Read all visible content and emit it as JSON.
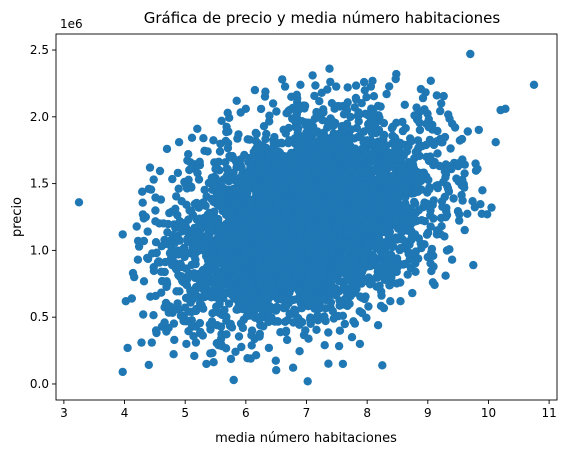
{
  "chart_data": {
    "type": "scatter",
    "title": "Gráfica de precio y media número habitaciones",
    "xlabel": "media número habitaciones",
    "ylabel": "precio",
    "y_offset_label": "1e6",
    "xlim": [
      2.87,
      11.13
    ],
    "ylim": [
      -0.12,
      2.62
    ],
    "x_ticks": [
      3,
      4,
      5,
      6,
      7,
      8,
      9,
      10,
      11
    ],
    "y_ticks": [
      0.0,
      0.5,
      1.0,
      1.5,
      2.0,
      2.5
    ],
    "x_tick_labels": [
      "3",
      "4",
      "5",
      "6",
      "7",
      "8",
      "9",
      "10",
      "11"
    ],
    "y_tick_labels": [
      "0.0",
      "0.5",
      "1.0",
      "1.5",
      "2.0",
      "2.5"
    ],
    "grid": false,
    "marker_color": "#1f77b4",
    "series": [
      {
        "points": [
          [
            3.25,
            1.36
          ],
          [
            3.97,
            0.09
          ],
          [
            3.97,
            1.12
          ],
          [
            4.02,
            0.62
          ],
          [
            4.05,
            0.27
          ],
          [
            4.12,
            0.64
          ],
          [
            4.14,
            0.83
          ],
          [
            4.16,
            0.8
          ],
          [
            4.22,
            0.93
          ],
          [
            4.28,
            0.31
          ],
          [
            4.32,
            1.07
          ],
          [
            4.35,
            1.25
          ],
          [
            4.4,
            1.46
          ],
          [
            4.42,
            1.62
          ],
          [
            4.45,
            0.31
          ],
          [
            4.48,
            1.53
          ],
          [
            4.52,
            0.4
          ],
          [
            4.55,
            0.91
          ],
          [
            4.6,
            1.38
          ],
          [
            4.62,
            0.77
          ],
          [
            4.66,
            0.46
          ],
          [
            4.7,
            1.76
          ],
          [
            4.72,
            1.05
          ],
          [
            4.75,
            0.58
          ],
          [
            4.78,
            1.29
          ],
          [
            4.82,
            0.33
          ],
          [
            4.85,
            0.86
          ],
          [
            4.88,
            1.58
          ],
          [
            4.9,
            1.81
          ],
          [
            4.93,
            0.51
          ],
          [
            4.96,
            1.19
          ],
          [
            5.02,
            0.3
          ],
          [
            5.05,
            1.72
          ],
          [
            5.08,
            0.66
          ],
          [
            5.1,
            1.47
          ],
          [
            5.15,
            0.21
          ],
          [
            5.18,
            1.02
          ],
          [
            5.2,
            1.91
          ],
          [
            5.25,
            0.39
          ],
          [
            5.3,
            1.84
          ],
          [
            5.35,
            0.15
          ],
          [
            5.4,
            1.27
          ],
          [
            5.45,
            0.53
          ],
          [
            5.5,
            1.61
          ],
          [
            5.55,
            0.29
          ],
          [
            5.6,
            1.97
          ],
          [
            5.62,
            0.74
          ],
          [
            5.7,
            2.03
          ],
          [
            5.75,
            0.45
          ],
          [
            5.8,
            0.03
          ],
          [
            5.85,
            2.12
          ],
          [
            5.9,
            0.61
          ],
          [
            5.95,
            1.15
          ],
          [
            6.0,
            2.06
          ],
          [
            6.08,
            0.19
          ],
          [
            6.15,
            2.2
          ],
          [
            6.22,
            0.36
          ],
          [
            6.3,
            1.93
          ],
          [
            6.38,
            0.27
          ],
          [
            6.45,
            2.1
          ],
          [
            6.52,
            0.47
          ],
          [
            6.6,
            2.28
          ],
          [
            6.68,
            0.33
          ],
          [
            6.75,
            2.15
          ],
          [
            6.82,
            0.55
          ],
          [
            6.9,
            2.24
          ],
          [
            6.98,
            0.4
          ],
          [
            7.02,
            0.02
          ],
          [
            7.1,
            2.31
          ],
          [
            7.18,
            0.64
          ],
          [
            7.25,
            2.18
          ],
          [
            7.3,
            0.29
          ],
          [
            7.38,
            2.36
          ],
          [
            7.45,
            0.49
          ],
          [
            7.52,
            2.08
          ],
          [
            7.6,
            0.15
          ],
          [
            7.68,
            2.22
          ],
          [
            7.75,
            0.35
          ],
          [
            7.82,
            2.13
          ],
          [
            7.88,
            0.3
          ],
          [
            7.95,
            2.26
          ],
          [
            8.02,
            0.58
          ],
          [
            8.1,
            2.04
          ],
          [
            8.18,
            0.44
          ],
          [
            8.25,
            0.14
          ],
          [
            8.32,
            2.17
          ],
          [
            8.4,
            0.8
          ],
          [
            8.48,
            2.32
          ],
          [
            8.55,
            0.62
          ],
          [
            8.62,
            2.09
          ],
          [
            8.7,
            0.98
          ],
          [
            8.78,
            2.01
          ],
          [
            8.85,
            1.3
          ],
          [
            8.92,
            2.14
          ],
          [
            9.0,
            0.95
          ],
          [
            9.05,
            2.27
          ],
          [
            9.1,
            1.79
          ],
          [
            9.15,
            1.12
          ],
          [
            9.22,
            2.1
          ],
          [
            9.28,
            1.4
          ],
          [
            9.35,
            1.63
          ],
          [
            9.4,
            0.93
          ],
          [
            9.45,
            1.92
          ],
          [
            9.52,
            1.27
          ],
          [
            9.6,
            1.47
          ],
          [
            9.66,
            1.89
          ],
          [
            9.7,
            2.47
          ],
          [
            9.75,
            0.89
          ],
          [
            9.82,
            1.61
          ],
          [
            9.9,
            1.45
          ],
          [
            9.98,
            1.27
          ],
          [
            10.05,
            1.32
          ],
          [
            10.12,
            1.81
          ],
          [
            10.2,
            2.05
          ],
          [
            10.28,
            2.06
          ],
          [
            10.75,
            2.24
          ]
        ],
        "dense_cloud": {
          "center_x": 6.98,
          "center_y": 1.23,
          "std_x": 0.99,
          "std_y": 0.35,
          "correlation": 0.33,
          "n_points": 5000
        }
      }
    ]
  }
}
